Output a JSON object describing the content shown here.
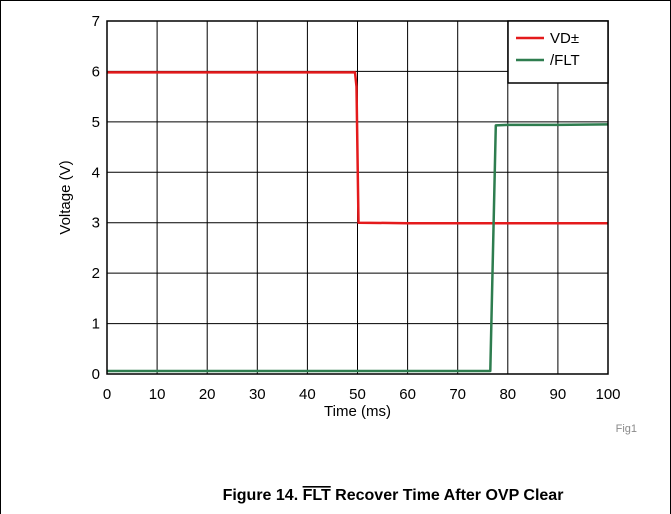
{
  "chart_data": {
    "type": "line",
    "xlabel": "Time (ms)",
    "ylabel": "Voltage (V)",
    "xlim": [
      0,
      100
    ],
    "ylim": [
      0,
      7
    ],
    "xticks": [
      "0",
      "10",
      "20",
      "30",
      "40",
      "50",
      "60",
      "70",
      "80",
      "90",
      "100"
    ],
    "yticks": [
      "0",
      "1",
      "2",
      "3",
      "4",
      "5",
      "6",
      "7"
    ],
    "grid": true,
    "legend": "top-right",
    "series": [
      {
        "name": "VD±",
        "color": "#e41a1c",
        "points": [
          [
            0,
            5.98
          ],
          [
            49.5,
            5.98
          ],
          [
            49.8,
            5.7
          ],
          [
            50.2,
            3.0
          ],
          [
            60,
            2.99
          ],
          [
            70,
            2.99
          ],
          [
            80,
            2.99
          ],
          [
            90,
            2.99
          ],
          [
            100,
            2.99
          ]
        ]
      },
      {
        "name": "/FLT",
        "color": "#2e7d4f",
        "points": [
          [
            0,
            0.06
          ],
          [
            76.5,
            0.06
          ],
          [
            77.6,
            4.93
          ],
          [
            80,
            4.94
          ],
          [
            90,
            4.94
          ],
          [
            100,
            4.95
          ]
        ]
      }
    ]
  },
  "figure_id": "Fig1",
  "caption": {
    "prefix": "Figure 14. ",
    "overline": "FLT",
    "suffix": " Recover Time After OVP Clear"
  }
}
